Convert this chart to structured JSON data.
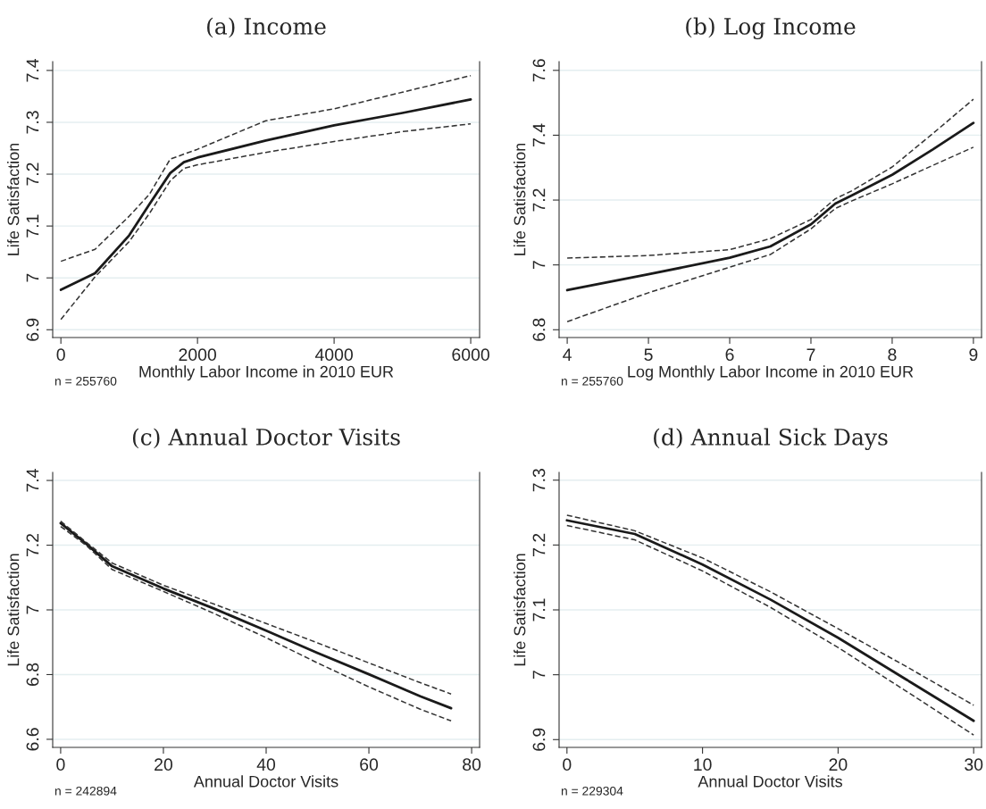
{
  "chart_data": [
    {
      "type": "line",
      "title": "(a) Income",
      "xlabel": "Monthly Labor Income in 2010 EUR",
      "ylabel": "Life Satisfaction",
      "annotations": [
        "n = 255760"
      ],
      "xlim": [
        -120,
        6130
      ],
      "ylim": [
        6.885,
        7.417
      ],
      "xticks": [
        0,
        2000,
        4000,
        6000
      ],
      "yticks": [
        6.9,
        7,
        7.1,
        7.2,
        7.3,
        7.4
      ],
      "grid": "y",
      "series": [
        {
          "color": "#1a1a1a",
          "line_style": "solid",
          "x": [
            0,
            500,
            1000,
            1300,
            1600,
            1800,
            2000,
            3000,
            4000,
            5000,
            6000
          ],
          "values": [
            6.977,
            7.009,
            7.082,
            7.143,
            7.202,
            7.223,
            7.232,
            7.265,
            7.294,
            7.318,
            7.344
          ]
        },
        {
          "color": "#333333",
          "line_style": "dashed",
          "x": [
            0,
            500,
            1000,
            1300,
            1600,
            2000,
            3000,
            4000,
            5000,
            6000
          ],
          "values": [
            7.032,
            7.055,
            7.119,
            7.162,
            7.229,
            7.248,
            7.303,
            7.326,
            7.358,
            7.39
          ]
        },
        {
          "color": "#333333",
          "line_style": "dashed",
          "x": [
            0,
            500,
            1000,
            1300,
            1600,
            1800,
            2000,
            3000,
            4000,
            5000,
            6000
          ],
          "values": [
            6.92,
            7.002,
            7.07,
            7.125,
            7.187,
            7.211,
            7.218,
            7.242,
            7.263,
            7.282,
            7.297
          ]
        }
      ]
    },
    {
      "type": "line",
      "title": "(b) Log Income",
      "xlabel": "Log Monthly Labor Income in 2010 EUR",
      "ylabel": "Life Satisfaction",
      "annotations": [
        "n = 255760"
      ],
      "xlim": [
        3.9,
        9.1
      ],
      "ylim": [
        6.776,
        7.627
      ],
      "xticks": [
        4,
        5,
        6,
        7,
        8,
        9
      ],
      "yticks": [
        6.8,
        7,
        7.2,
        7.4,
        7.6
      ],
      "grid": "y",
      "series": [
        {
          "color": "#1a1a1a",
          "line_style": "solid",
          "x": [
            4,
            5,
            6,
            6.5,
            7,
            7.3,
            7.5,
            8,
            8.5,
            9
          ],
          "values": [
            6.922,
            6.971,
            7.022,
            7.057,
            7.125,
            7.189,
            7.214,
            7.278,
            7.356,
            7.438
          ]
        },
        {
          "color": "#333333",
          "line_style": "dashed",
          "x": [
            4,
            5,
            6,
            6.5,
            7,
            7.3,
            7.5,
            8,
            8.5,
            9
          ],
          "values": [
            7.021,
            7.029,
            7.047,
            7.081,
            7.14,
            7.204,
            7.228,
            7.302,
            7.405,
            7.511
          ]
        },
        {
          "color": "#333333",
          "line_style": "dashed",
          "x": [
            4,
            5,
            6,
            6.5,
            7,
            7.3,
            7.5,
            8,
            8.5,
            9
          ],
          "values": [
            6.825,
            6.914,
            6.993,
            7.032,
            7.111,
            7.174,
            7.197,
            7.25,
            7.307,
            7.363
          ]
        }
      ]
    },
    {
      "type": "line",
      "title": "(c) Annual Doctor Visits",
      "xlabel": "Annual Doctor Visits",
      "ylabel": "Life Satisfaction",
      "annotations": [
        "n = 242894"
      ],
      "xlim": [
        -1.55,
        81.55
      ],
      "ylim": [
        6.575,
        7.425
      ],
      "xticks": [
        0,
        20,
        40,
        60,
        80
      ],
      "yticks": [
        6.6,
        6.8,
        7,
        7.2,
        7.4
      ],
      "grid": "y",
      "series": [
        {
          "color": "#1a1a1a",
          "line_style": "solid",
          "x": [
            0,
            5,
            10,
            20,
            30,
            40,
            50,
            60,
            70,
            76
          ],
          "values": [
            7.268,
            7.204,
            7.135,
            7.066,
            7.003,
            6.936,
            6.867,
            6.801,
            6.733,
            6.696
          ]
        },
        {
          "color": "#333333",
          "line_style": "dashed",
          "x": [
            0,
            5,
            10,
            20,
            30,
            40,
            50,
            60,
            70,
            76
          ],
          "values": [
            7.274,
            7.209,
            7.145,
            7.076,
            7.017,
            6.958,
            6.898,
            6.836,
            6.775,
            6.74
          ]
        },
        {
          "color": "#333333",
          "line_style": "dashed",
          "x": [
            0,
            5,
            10,
            20,
            30,
            40,
            50,
            60,
            70,
            76
          ],
          "values": [
            7.258,
            7.199,
            7.125,
            7.057,
            6.988,
            6.914,
            6.836,
            6.762,
            6.693,
            6.657
          ]
        }
      ]
    },
    {
      "type": "line",
      "title": "(d) Annual Sick Days",
      "xlabel": "Annual Doctor Visits",
      "ylabel": "Life Satisfaction",
      "annotations": [
        "n = 229304"
      ],
      "xlim": [
        -0.58,
        30.58
      ],
      "ylim": [
        6.888,
        7.312
      ],
      "xticks": [
        0,
        10,
        20,
        30
      ],
      "yticks": [
        6.9,
        7,
        7.1,
        7.2,
        7.3
      ],
      "grid": "y",
      "series": [
        {
          "color": "#1a1a1a",
          "line_style": "solid",
          "x": [
            0,
            5,
            10,
            15,
            20,
            25,
            30
          ],
          "values": [
            7.238,
            7.217,
            7.17,
            7.116,
            7.057,
            6.993,
            6.929
          ]
        },
        {
          "color": "#333333",
          "line_style": "dashed",
          "x": [
            0,
            5,
            10,
            15,
            20,
            25,
            30
          ],
          "values": [
            7.246,
            7.222,
            7.18,
            7.128,
            7.071,
            7.013,
            6.953
          ]
        },
        {
          "color": "#333333",
          "line_style": "dashed",
          "x": [
            0,
            5,
            10,
            15,
            20,
            25,
            30
          ],
          "values": [
            7.23,
            7.208,
            7.16,
            7.104,
            7.042,
            6.975,
            6.907
          ]
        }
      ]
    }
  ]
}
